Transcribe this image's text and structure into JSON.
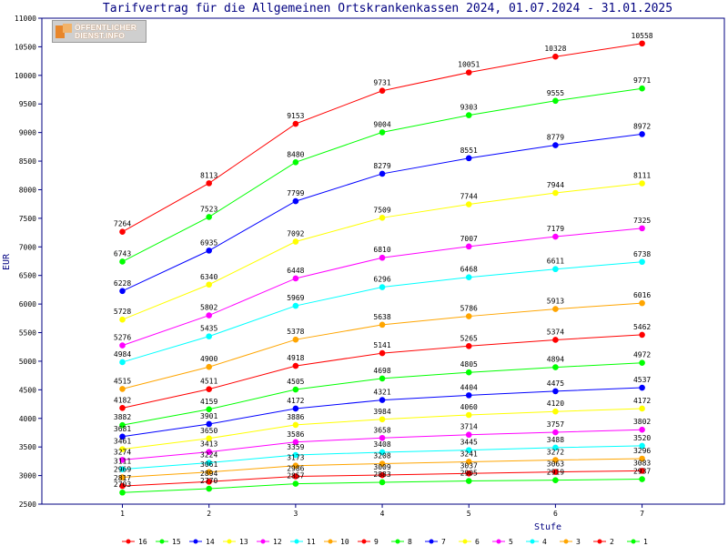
{
  "chart_data": {
    "type": "line",
    "title": "Tarifvertrag für die Allgemeinen Ortskrankenkassen 2024, 01.07.2024 - 31.01.2025",
    "xlabel": "Stufe",
    "ylabel": "EUR",
    "x": [
      1,
      2,
      3,
      4,
      5,
      6,
      7
    ],
    "ylim": [
      2500,
      11000
    ],
    "yticks": [
      2500,
      3000,
      3500,
      4000,
      4500,
      5000,
      5500,
      6000,
      6500,
      7000,
      7500,
      8000,
      8500,
      9000,
      9500,
      10000,
      10500,
      11000
    ],
    "grid": false,
    "legend_position": "bottom",
    "series": [
      {
        "name": "16",
        "color": "#ff0000",
        "values": [
          7264,
          8113,
          9153,
          9731,
          10051,
          10328,
          10558
        ]
      },
      {
        "name": "15",
        "color": "#00ff00",
        "values": [
          6743,
          7523,
          8480,
          9004,
          9303,
          9555,
          9771
        ]
      },
      {
        "name": "14",
        "color": "#0000ff",
        "values": [
          6228,
          6935,
          7799,
          8279,
          8551,
          8779,
          8972
        ]
      },
      {
        "name": "13",
        "color": "#ffff00",
        "values": [
          5728,
          6340,
          7092,
          7509,
          7744,
          7944,
          8111
        ]
      },
      {
        "name": "12",
        "color": "#ff00ff",
        "values": [
          5276,
          5802,
          6448,
          6810,
          7007,
          7179,
          7325
        ]
      },
      {
        "name": "11",
        "color": "#00ffff",
        "values": [
          4984,
          5435,
          5969,
          6296,
          6468,
          6611,
          6738
        ]
      },
      {
        "name": "10",
        "color": "#ffa500",
        "values": [
          4515,
          4900,
          5378,
          5638,
          5786,
          5913,
          6016
        ]
      },
      {
        "name": "9",
        "color": "#ff0000",
        "values": [
          4182,
          4511,
          4918,
          5141,
          5265,
          5374,
          5462
        ]
      },
      {
        "name": "8",
        "color": "#00ff00",
        "values": [
          3882,
          4159,
          4505,
          4698,
          4805,
          4894,
          4972
        ]
      },
      {
        "name": "7",
        "color": "#0000ff",
        "values": [
          3681,
          3901,
          4172,
          4321,
          4404,
          4475,
          4537
        ]
      },
      {
        "name": "6",
        "color": "#ffff00",
        "values": [
          3461,
          3650,
          3886,
          3984,
          4060,
          4120,
          4172
        ]
      },
      {
        "name": "5",
        "color": "#ff00ff",
        "values": [
          3274,
          3413,
          3586,
          3658,
          3714,
          3757,
          3802
        ]
      },
      {
        "name": "4",
        "color": "#00ffff",
        "values": [
          3111,
          3224,
          3359,
          3408,
          3445,
          3488,
          3520
        ]
      },
      {
        "name": "3",
        "color": "#ffa500",
        "values": [
          2969,
          3061,
          3173,
          3208,
          3241,
          3272,
          3296
        ]
      },
      {
        "name": "2",
        "color": "#ff0000",
        "values": [
          2817,
          2894,
          2986,
          3009,
          3037,
          3063,
          3083
        ]
      },
      {
        "name": "1",
        "color": "#00ff00",
        "values": [
          2703,
          2770,
          2857,
          2883,
          2905,
          2919,
          2937
        ]
      }
    ]
  },
  "logo": {
    "line1": "ÖFFENTLICHER",
    "line2": "DIENST.INFO"
  },
  "colors": {
    "axis": "#000080",
    "background": "#ffffff"
  }
}
